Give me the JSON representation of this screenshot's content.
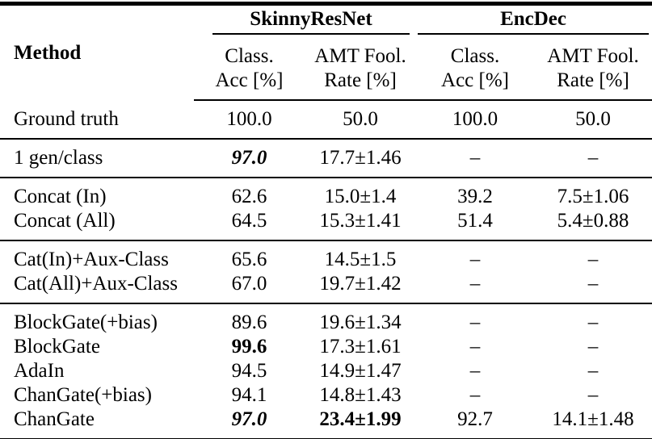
{
  "page": {
    "background_color": "#ffffff",
    "text_color": "#000000",
    "rule_color": "#000000"
  },
  "table": {
    "header": {
      "method_label": "Method",
      "groups": [
        {
          "label": "SkinnyResNet",
          "columns": [
            {
              "line1": "Class.",
              "line2": "Acc [%]"
            },
            {
              "line1": "AMT Fool.",
              "line2": "Rate [%]"
            }
          ]
        },
        {
          "label": "EncDec",
          "columns": [
            {
              "line1": "Class.",
              "line2": "Acc [%]"
            },
            {
              "line1": "AMT Fool.",
              "line2": "Rate [%]"
            }
          ]
        }
      ]
    },
    "missing_value": "–",
    "sections": [
      {
        "rows": [
          {
            "method": "Ground truth",
            "values": [
              {
                "text": "100.0"
              },
              {
                "text": "50.0"
              },
              {
                "text": "100.0"
              },
              {
                "text": "50.0"
              }
            ]
          }
        ]
      },
      {
        "rows": [
          {
            "method": "1 gen/class",
            "values": [
              {
                "text": "97.0",
                "style": "bold-italic"
              },
              {
                "text": "17.7±1.46"
              },
              {
                "text": "–"
              },
              {
                "text": "–"
              }
            ]
          }
        ]
      },
      {
        "rows": [
          {
            "method": "Concat (In)",
            "values": [
              {
                "text": "62.6"
              },
              {
                "text": "15.0±1.4"
              },
              {
                "text": "39.2"
              },
              {
                "text": "7.5±1.06"
              }
            ]
          },
          {
            "method": "Concat (All)",
            "values": [
              {
                "text": "64.5"
              },
              {
                "text": "15.3±1.41"
              },
              {
                "text": "51.4"
              },
              {
                "text": "5.4±0.88"
              }
            ]
          }
        ]
      },
      {
        "rows": [
          {
            "method": "Cat(In)+Aux-Class",
            "values": [
              {
                "text": "65.6"
              },
              {
                "text": "14.5±1.5"
              },
              {
                "text": "–"
              },
              {
                "text": "–"
              }
            ]
          },
          {
            "method": "Cat(All)+Aux-Class",
            "values": [
              {
                "text": "67.0"
              },
              {
                "text": "19.7±1.42"
              },
              {
                "text": "–"
              },
              {
                "text": "–"
              }
            ]
          }
        ]
      },
      {
        "rows": [
          {
            "method": "BlockGate(+bias)",
            "values": [
              {
                "text": "89.6"
              },
              {
                "text": "19.6±1.34"
              },
              {
                "text": "–"
              },
              {
                "text": "–"
              }
            ]
          },
          {
            "method": "BlockGate",
            "values": [
              {
                "text": "99.6",
                "style": "bold"
              },
              {
                "text": "17.3±1.61"
              },
              {
                "text": "–"
              },
              {
                "text": "–"
              }
            ]
          },
          {
            "method": "AdaIn",
            "values": [
              {
                "text": "94.5"
              },
              {
                "text": "14.9±1.47"
              },
              {
                "text": "–"
              },
              {
                "text": "–"
              }
            ]
          },
          {
            "method": "ChanGate(+bias)",
            "values": [
              {
                "text": "94.1"
              },
              {
                "text": "14.8±1.43"
              },
              {
                "text": "–"
              },
              {
                "text": "–"
              }
            ]
          },
          {
            "method": "ChanGate",
            "values": [
              {
                "text": "97.0",
                "style": "bold-italic"
              },
              {
                "text": "23.4±1.99",
                "style": "bold"
              },
              {
                "text": "92.7"
              },
              {
                "text": "14.1±1.48"
              }
            ]
          }
        ]
      }
    ]
  }
}
